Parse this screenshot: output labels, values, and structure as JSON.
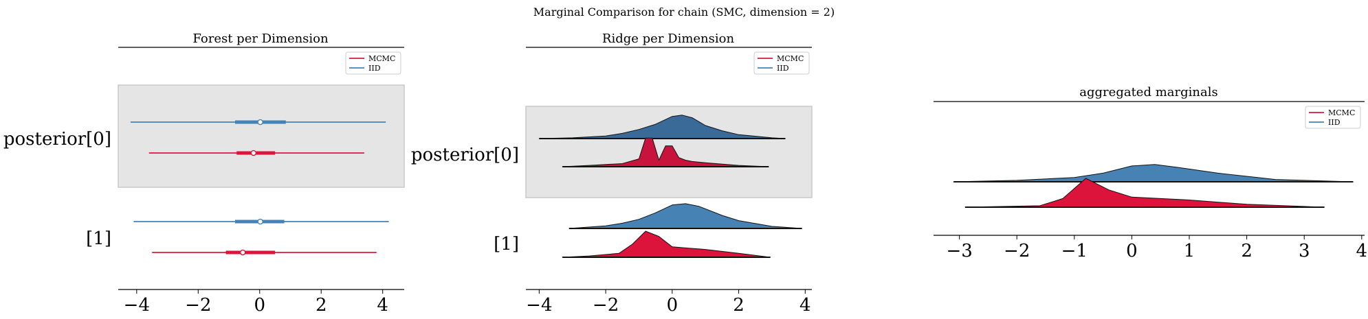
{
  "figure": {
    "suptitle": "Marginal Comparison for chain (SMC, dimension = 2)"
  },
  "colors": {
    "mcmc": "#dc143c",
    "iid": "#4682b4",
    "band": "#e5e5e5",
    "band_edge": "#c8c8c8"
  },
  "chart_data": [
    {
      "type": "forest",
      "title": "Forest per Dimension",
      "xlim": [
        -4.6,
        4.7
      ],
      "xticks": [
        -4,
        -2,
        0,
        2,
        4
      ],
      "xtick_labels": [
        "−4",
        "−2",
        "0",
        "2",
        "4"
      ],
      "ylabels": [
        "posterior[0]",
        "[1]"
      ],
      "legend": {
        "placement": "top-right",
        "entries": [
          {
            "name": "MCMC",
            "color": "#dc143c"
          },
          {
            "name": "IID",
            "color": "#4682b4"
          }
        ]
      },
      "rows": [
        {
          "label": "posterior[0]",
          "shaded": true,
          "series": [
            {
              "name": "IID",
              "color": "#4682b4",
              "hdi": [
                -4.2,
                4.1
              ],
              "iqr": [
                -0.8,
                0.85
              ],
              "point": 0.02
            },
            {
              "name": "MCMC",
              "color": "#dc143c",
              "hdi": [
                -3.6,
                3.4
              ],
              "iqr": [
                -0.75,
                0.5
              ],
              "point": -0.2
            }
          ]
        },
        {
          "label": "[1]",
          "shaded": false,
          "series": [
            {
              "name": "IID",
              "color": "#4682b4",
              "hdi": [
                -4.1,
                4.2
              ],
              "iqr": [
                -0.8,
                0.8
              ],
              "point": 0.02
            },
            {
              "name": "MCMC",
              "color": "#dc143c",
              "hdi": [
                -3.5,
                3.8
              ],
              "iqr": [
                -1.1,
                0.5
              ],
              "point": -0.55
            }
          ]
        }
      ]
    },
    {
      "type": "ridge",
      "title": "Ridge per Dimension",
      "xlim": [
        -4.4,
        4.2
      ],
      "xticks": [
        -4,
        -2,
        0,
        2,
        4
      ],
      "xtick_labels": [
        "−4",
        "−2",
        "0",
        "2",
        "4"
      ],
      "ylabels": [
        "posterior[0]",
        "[1]"
      ],
      "legend": {
        "placement": "top-right",
        "entries": [
          {
            "name": "MCMC",
            "color": "#dc143c"
          },
          {
            "name": "IID",
            "color": "#4682b4"
          }
        ]
      },
      "rows": [
        {
          "label": "posterior[0]",
          "shaded": true,
          "series": [
            {
              "name": "IID",
              "color": "#3a6a98",
              "x": [
                -4.0,
                -3.0,
                -2.0,
                -1.5,
                -1.0,
                -0.5,
                0.0,
                0.3,
                0.6,
                1.0,
                1.5,
                2.0,
                3.0,
                3.4
              ],
              "y": [
                0.0,
                0.03,
                0.1,
                0.2,
                0.35,
                0.55,
                0.85,
                0.9,
                0.8,
                0.5,
                0.3,
                0.15,
                0.03,
                0.0
              ]
            },
            {
              "name": "MCMC",
              "color": "#c8143c",
              "x": [
                -3.3,
                -2.5,
                -1.5,
                -1.0,
                -0.8,
                -0.6,
                -0.4,
                -0.2,
                0.0,
                0.2,
                0.4,
                0.6,
                1.0,
                2.0,
                2.9
              ],
              "y": [
                0.0,
                0.05,
                0.12,
                0.3,
                1.1,
                1.1,
                0.25,
                0.8,
                0.8,
                0.35,
                0.25,
                0.2,
                0.15,
                0.05,
                0.0
              ]
            }
          ]
        },
        {
          "label": "[1]",
          "shaded": false,
          "series": [
            {
              "name": "IID",
              "color": "#4682b4",
              "x": [
                -3.1,
                -2.0,
                -1.5,
                -1.0,
                -0.5,
                0.0,
                0.4,
                0.8,
                1.5,
                2.0,
                3.0,
                3.9
              ],
              "y": [
                0.0,
                0.1,
                0.2,
                0.35,
                0.6,
                0.9,
                0.95,
                0.85,
                0.5,
                0.3,
                0.08,
                0.0
              ]
            },
            {
              "name": "MCMC",
              "color": "#dc143c",
              "x": [
                -3.3,
                -2.5,
                -1.6,
                -1.2,
                -0.8,
                -0.4,
                0.0,
                0.5,
                1.0,
                2.0,
                2.95
              ],
              "y": [
                0.0,
                0.05,
                0.15,
                0.5,
                1.0,
                0.8,
                0.4,
                0.35,
                0.3,
                0.15,
                0.0
              ]
            }
          ]
        }
      ]
    },
    {
      "type": "ridge",
      "title": "aggregated marginals",
      "xlim": [
        -3.45,
        4.05
      ],
      "xticks": [
        -3,
        -2,
        -1,
        0,
        1,
        2,
        3,
        4
      ],
      "xtick_labels": [
        "−3",
        "−2",
        "−1",
        "0",
        "1",
        "2",
        "3",
        "4"
      ],
      "ylabels": [],
      "legend": {
        "placement": "top-right",
        "entries": [
          {
            "name": "MCMC",
            "color": "#dc143c"
          },
          {
            "name": "IID",
            "color": "#4682b4"
          }
        ]
      },
      "rows": [
        {
          "label": "",
          "shaded": false,
          "series": [
            {
              "name": "IID",
              "color": "#4682b4",
              "x": [
                -3.1,
                -2.0,
                -1.0,
                -0.5,
                0.0,
                0.4,
                0.8,
                1.5,
                2.5,
                3.85
              ],
              "y": [
                0.0,
                0.05,
                0.15,
                0.3,
                0.55,
                0.6,
                0.5,
                0.3,
                0.08,
                0.0
              ]
            },
            {
              "name": "MCMC",
              "color": "#dc143c",
              "x": [
                -2.9,
                -1.6,
                -1.2,
                -0.8,
                -0.4,
                0.0,
                0.5,
                1.0,
                2.0,
                3.35
              ],
              "y": [
                0.0,
                0.05,
                0.3,
                1.0,
                0.6,
                0.35,
                0.3,
                0.25,
                0.1,
                0.0
              ]
            }
          ]
        }
      ]
    }
  ]
}
